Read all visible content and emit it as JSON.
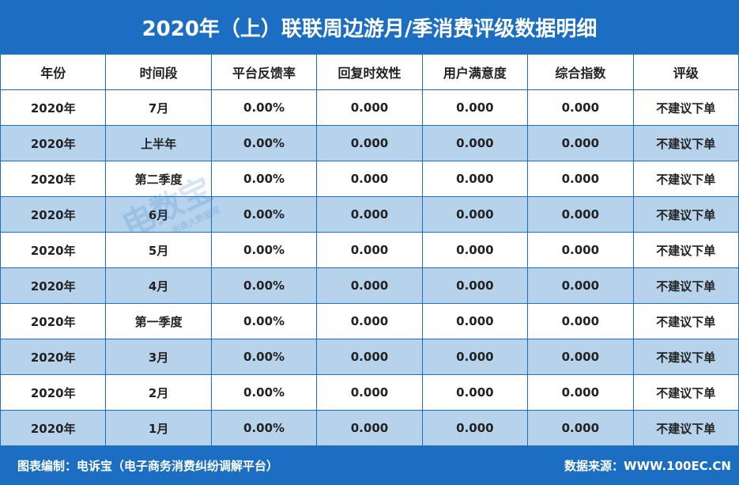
{
  "header": {
    "title": "2020年（上）联联周边游月/季消费评级数据明细"
  },
  "table": {
    "columns": [
      "年份",
      "时间段",
      "平台反馈率",
      "回复时效性",
      "用户满意度",
      "综合指数",
      "评级"
    ],
    "rows": [
      [
        "2020年",
        "7月",
        "0.00%",
        "0.000",
        "0.000",
        "0.000",
        "不建议下单"
      ],
      [
        "2020年",
        "上半年",
        "0.00%",
        "0.000",
        "0.000",
        "0.000",
        "不建议下单"
      ],
      [
        "2020年",
        "第二季度",
        "0.00%",
        "0.000",
        "0.000",
        "0.000",
        "不建议下单"
      ],
      [
        "2020年",
        "6月",
        "0.00%",
        "0.000",
        "0.000",
        "0.000",
        "不建议下单"
      ],
      [
        "2020年",
        "5月",
        "0.00%",
        "0.000",
        "0.000",
        "0.000",
        "不建议下单"
      ],
      [
        "2020年",
        "4月",
        "0.00%",
        "0.000",
        "0.000",
        "0.000",
        "不建议下单"
      ],
      [
        "2020年",
        "第一季度",
        "0.00%",
        "0.000",
        "0.000",
        "0.000",
        "不建议下单"
      ],
      [
        "2020年",
        "3月",
        "0.00%",
        "0.000",
        "0.000",
        "0.000",
        "不建议下单"
      ],
      [
        "2020年",
        "2月",
        "0.00%",
        "0.000",
        "0.000",
        "0.000",
        "不建议下单"
      ],
      [
        "2020年",
        "1月",
        "0.00%",
        "0.000",
        "0.000",
        "0.000",
        "不建议下单"
      ]
    ]
  },
  "watermark": {
    "logo": "电数宝",
    "sub": "电商大数据库"
  },
  "footer": {
    "left": "图表编制：电诉宝（电子商务消费纠纷调解平台）",
    "right": "数据来源：WWW.100EC.CN"
  }
}
